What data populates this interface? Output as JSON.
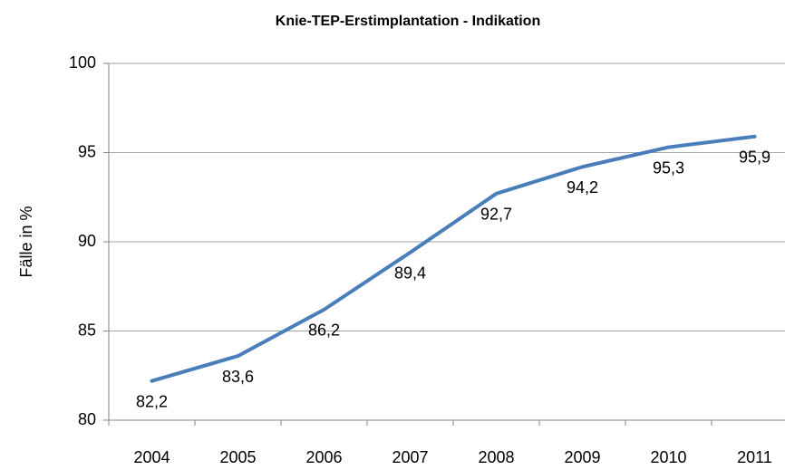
{
  "chart_data": {
    "type": "line",
    "title": "Knie-TEP-Erstimplantation  - Indikation",
    "y_label": "Fälle in %",
    "categories": [
      "2004",
      "2005",
      "2006",
      "2007",
      "2008",
      "2009",
      "2010",
      "2011"
    ],
    "series": [
      {
        "color": "#4a7ebb",
        "values": [
          82.2,
          83.6,
          86.2,
          89.4,
          92.7,
          94.2,
          95.3,
          95.9
        ],
        "value_labels": [
          "82,2",
          "83,6",
          "86,2",
          "89,4",
          "92,7",
          "94,2",
          "95,3",
          "95,9"
        ]
      }
    ],
    "ylim": [
      80,
      100
    ],
    "yticks": [
      80,
      85,
      90,
      95,
      100
    ],
    "grid": true
  }
}
